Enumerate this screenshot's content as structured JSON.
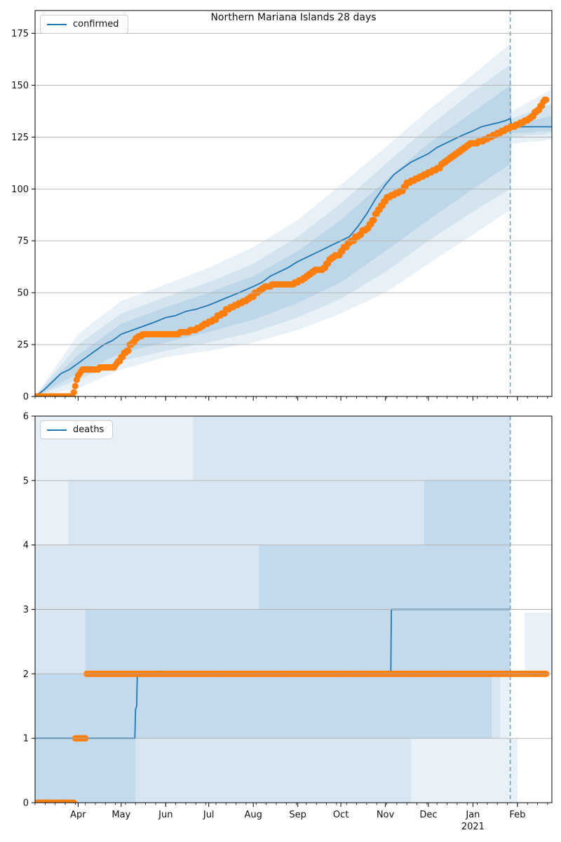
{
  "title": "Northern Mariana Islands 28 days",
  "year_label": "2021",
  "colors": {
    "median": "#1f77b4",
    "actual": "#ff7f0e",
    "forecast_vline": "#62a1cd",
    "grid": "#b0b0b0",
    "band_base": "#1f77b4",
    "spine": "#000000",
    "tick_text": "#111111"
  },
  "x_axis": {
    "month_labels": [
      "Apr",
      "May",
      "Jun",
      "Jul",
      "Aug",
      "Sep",
      "Oct",
      "Nov",
      "Dec",
      "Jan",
      "Feb"
    ],
    "month_days": [
      30,
      60,
      91,
      121,
      152,
      183,
      213,
      244,
      274,
      305,
      336
    ],
    "minor_step": 7,
    "total_days": 360,
    "year_under_month": "Jan",
    "forecast_start_day": 331
  },
  "chart_data": [
    {
      "type": "line",
      "name": "confirmed",
      "legend": "confirmed",
      "title": "Northern Mariana Islands 28 days",
      "xlabel": "",
      "ylabel": "",
      "ylim": [
        0,
        186
      ],
      "yticks": [
        0,
        25,
        50,
        75,
        100,
        125,
        150,
        175
      ],
      "median": [
        [
          0,
          0
        ],
        [
          6,
          3
        ],
        [
          12,
          7
        ],
        [
          18,
          11
        ],
        [
          24,
          13
        ],
        [
          30,
          16
        ],
        [
          36,
          19
        ],
        [
          42,
          22
        ],
        [
          48,
          25
        ],
        [
          54,
          27
        ],
        [
          60,
          30
        ],
        [
          68,
          32
        ],
        [
          76,
          34
        ],
        [
          84,
          36
        ],
        [
          91,
          38
        ],
        [
          98,
          39
        ],
        [
          105,
          41
        ],
        [
          112,
          42
        ],
        [
          121,
          44
        ],
        [
          128,
          46
        ],
        [
          135,
          48
        ],
        [
          142,
          50
        ],
        [
          152,
          53
        ],
        [
          158,
          55
        ],
        [
          164,
          58
        ],
        [
          170,
          60
        ],
        [
          176,
          62
        ],
        [
          183,
          65
        ],
        [
          189,
          67
        ],
        [
          195,
          69
        ],
        [
          201,
          71
        ],
        [
          207,
          73
        ],
        [
          213,
          75
        ],
        [
          219,
          77
        ],
        [
          225,
          82
        ],
        [
          231,
          88
        ],
        [
          237,
          95
        ],
        [
          244,
          102
        ],
        [
          250,
          107
        ],
        [
          256,
          110
        ],
        [
          262,
          113
        ],
        [
          268,
          115
        ],
        [
          274,
          117
        ],
        [
          280,
          120
        ],
        [
          286,
          122
        ],
        [
          292,
          124
        ],
        [
          298,
          126
        ],
        [
          305,
          128
        ],
        [
          311,
          130
        ],
        [
          317,
          131
        ],
        [
          323,
          132
        ],
        [
          328,
          133
        ],
        [
          331,
          134
        ],
        [
          332,
          130
        ],
        [
          340,
          130
        ],
        [
          350,
          130
        ],
        [
          360,
          130
        ]
      ],
      "bands": [
        {
          "alpha": 0.1,
          "x": [
            0,
            30,
            60,
            91,
            121,
            152,
            183,
            213,
            244,
            274,
            305,
            331,
            332,
            336,
            344,
            352,
            360
          ],
          "lo": [
            0,
            4,
            13,
            19,
            22,
            26,
            32,
            40,
            50,
            64,
            78,
            90,
            122,
            122,
            123,
            123,
            124
          ],
          "hi": [
            0,
            30,
            46,
            54,
            62,
            72,
            85,
            102,
            120,
            138,
            155,
            170,
            137,
            139,
            142,
            145,
            148
          ]
        },
        {
          "alpha": 0.1,
          "x": [
            0,
            30,
            60,
            91,
            121,
            152,
            183,
            213,
            244,
            274,
            305,
            331,
            332,
            336,
            344,
            352,
            360
          ],
          "lo": [
            0,
            8,
            17,
            22,
            26,
            31,
            38,
            47,
            60,
            75,
            89,
            100,
            125,
            125,
            126,
            126,
            127
          ],
          "hi": [
            0,
            25,
            40,
            48,
            55,
            64,
            77,
            93,
            112,
            130,
            147,
            160,
            134,
            135,
            137,
            139,
            141
          ]
        },
        {
          "alpha": 0.12,
          "x": [
            0,
            30,
            60,
            91,
            121,
            152,
            183,
            213,
            244,
            274,
            305,
            331,
            332,
            336,
            344,
            352,
            360
          ],
          "lo": [
            0,
            11,
            21,
            26,
            31,
            37,
            45,
            55,
            70,
            85,
            100,
            112,
            127,
            127,
            127,
            128,
            128
          ],
          "hi": [
            0,
            20,
            35,
            43,
            50,
            58,
            70,
            85,
            104,
            122,
            137,
            150,
            132,
            132,
            133,
            134,
            135
          ]
        }
      ],
      "actual": [
        [
          0,
          0
        ],
        [
          27,
          2
        ],
        [
          28,
          5
        ],
        [
          29,
          8
        ],
        [
          30,
          10
        ],
        [
          31,
          11
        ],
        [
          32,
          12
        ],
        [
          33,
          13
        ],
        [
          45,
          14
        ],
        [
          56,
          15
        ],
        [
          57,
          16
        ],
        [
          58,
          17
        ],
        [
          60,
          19
        ],
        [
          62,
          21
        ],
        [
          64,
          22
        ],
        [
          66,
          25
        ],
        [
          68,
          26
        ],
        [
          70,
          28
        ],
        [
          72,
          29
        ],
        [
          75,
          30
        ],
        [
          101,
          31
        ],
        [
          108,
          32
        ],
        [
          113,
          33
        ],
        [
          116,
          34
        ],
        [
          118,
          35
        ],
        [
          121,
          36
        ],
        [
          124,
          37
        ],
        [
          127,
          39
        ],
        [
          130,
          40
        ],
        [
          133,
          42
        ],
        [
          136,
          43
        ],
        [
          139,
          44
        ],
        [
          142,
          45
        ],
        [
          145,
          46
        ],
        [
          148,
          47
        ],
        [
          150,
          48
        ],
        [
          153,
          50
        ],
        [
          156,
          51
        ],
        [
          158,
          52
        ],
        [
          160,
          53
        ],
        [
          165,
          54
        ],
        [
          181,
          55
        ],
        [
          184,
          56
        ],
        [
          187,
          57
        ],
        [
          189,
          58
        ],
        [
          191,
          59
        ],
        [
          193,
          60
        ],
        [
          195,
          61
        ],
        [
          201,
          62
        ],
        [
          203,
          64
        ],
        [
          205,
          66
        ],
        [
          207,
          67
        ],
        [
          209,
          68
        ],
        [
          213,
          70
        ],
        [
          215,
          72
        ],
        [
          218,
          74
        ],
        [
          220,
          75
        ],
        [
          223,
          77
        ],
        [
          226,
          78
        ],
        [
          228,
          80
        ],
        [
          231,
          81
        ],
        [
          233,
          83
        ],
        [
          235,
          85
        ],
        [
          237,
          88
        ],
        [
          239,
          90
        ],
        [
          241,
          92
        ],
        [
          243,
          94
        ],
        [
          245,
          96
        ],
        [
          248,
          97
        ],
        [
          251,
          98
        ],
        [
          254,
          99
        ],
        [
          257,
          101
        ],
        [
          259,
          103
        ],
        [
          262,
          104
        ],
        [
          265,
          105
        ],
        [
          268,
          106
        ],
        [
          271,
          107
        ],
        [
          274,
          108
        ],
        [
          277,
          109
        ],
        [
          280,
          110
        ],
        [
          283,
          112
        ],
        [
          285,
          113
        ],
        [
          287,
          114
        ],
        [
          289,
          115
        ],
        [
          291,
          116
        ],
        [
          293,
          117
        ],
        [
          295,
          118
        ],
        [
          297,
          119
        ],
        [
          299,
          120
        ],
        [
          301,
          121
        ],
        [
          303,
          122
        ],
        [
          309,
          123
        ],
        [
          313,
          124
        ],
        [
          316,
          125
        ],
        [
          319,
          126
        ],
        [
          322,
          127
        ],
        [
          325,
          128
        ],
        [
          328,
          129
        ],
        [
          331,
          130
        ],
        [
          335,
          131
        ],
        [
          338,
          132
        ],
        [
          341,
          133
        ],
        [
          344,
          134
        ],
        [
          346,
          135
        ],
        [
          348,
          137
        ],
        [
          350,
          138
        ],
        [
          352,
          140
        ],
        [
          354,
          142
        ],
        [
          355,
          143
        ],
        [
          356,
          143
        ]
      ]
    },
    {
      "type": "step",
      "name": "deaths",
      "legend": "deaths",
      "xlabel": "",
      "ylabel": "",
      "ylim": [
        0,
        6
      ],
      "yticks": [
        0,
        1,
        2,
        3,
        4,
        5,
        6
      ],
      "median": [
        [
          0,
          1
        ],
        [
          69.5,
          1
        ],
        [
          70,
          1.45
        ],
        [
          70.8,
          1.5
        ],
        [
          71.2,
          2
        ],
        [
          247.8,
          2
        ],
        [
          248.2,
          3
        ],
        [
          331,
          3
        ]
      ],
      "band_rects": [
        {
          "x0": 0,
          "x1": 110,
          "y0": 5,
          "y1": 6,
          "level": 1
        },
        {
          "x0": 110,
          "x1": 331,
          "y0": 5,
          "y1": 6,
          "level": 2
        },
        {
          "x0": 0,
          "x1": 23,
          "y0": 4,
          "y1": 5,
          "level": 1
        },
        {
          "x0": 23,
          "x1": 271,
          "y0": 4,
          "y1": 5,
          "level": 2
        },
        {
          "x0": 271,
          "x1": 331,
          "y0": 4,
          "y1": 5,
          "level": 3
        },
        {
          "x0": 0,
          "x1": 156,
          "y0": 3,
          "y1": 4,
          "level": 2
        },
        {
          "x0": 156,
          "x1": 331,
          "y0": 3,
          "y1": 4,
          "level": 3
        },
        {
          "x0": 0,
          "x1": 35,
          "y0": 2,
          "y1": 3,
          "level": 2
        },
        {
          "x0": 35,
          "x1": 331,
          "y0": 2,
          "y1": 3,
          "level": 3
        },
        {
          "x0": 341,
          "x1": 360,
          "y0": 2,
          "y1": 2.95,
          "level": 1
        },
        {
          "x0": 0,
          "x1": 318,
          "y0": 1,
          "y1": 2,
          "level": 3
        },
        {
          "x0": 318,
          "x1": 324,
          "y0": 1,
          "y1": 2,
          "level": 2
        },
        {
          "x0": 324,
          "x1": 331,
          "y0": 1,
          "y1": 2,
          "level": 1
        },
        {
          "x0": 0,
          "x1": 70,
          "y0": 0,
          "y1": 1,
          "level": 3
        },
        {
          "x0": 70,
          "x1": 262,
          "y0": 0,
          "y1": 1,
          "level": 2
        },
        {
          "x0": 262,
          "x1": 336,
          "y0": 0,
          "y1": 1,
          "level": 1
        }
      ],
      "actual": [
        [
          0,
          0
        ],
        [
          28,
          1
        ],
        [
          36,
          2
        ],
        [
          356,
          2
        ]
      ]
    }
  ]
}
